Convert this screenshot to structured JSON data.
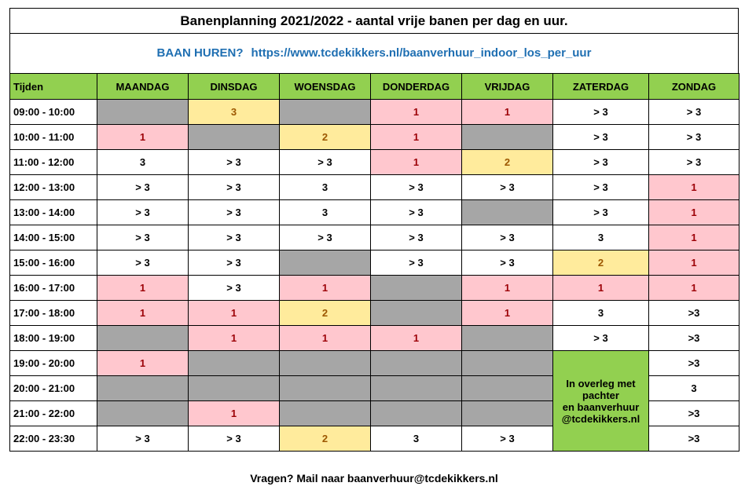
{
  "title": "Banenplanning 2021/2022 - aantal vrije banen per dag en uur.",
  "link": {
    "label": "BAAN HUREN?",
    "url": "https://www.tcdekikkers.nl/baanverhuur_indoor_los_per_uur"
  },
  "headers": [
    "Tijden",
    "MAANDAG",
    "DINSDAG",
    "WOENSDAG",
    "DONDERDAG",
    "VRIJDAG",
    "ZATERDAG",
    "ZONDAG"
  ],
  "status_colors": {
    "grey": "#a6a6a6",
    "pink": "#ffc7ce",
    "yellow": "#ffeb9c",
    "white": "#ffffff",
    "green": "#92d050"
  },
  "rows": [
    {
      "time": "09:00 - 10:00",
      "cells": [
        {
          "v": "",
          "c": "g"
        },
        {
          "v": "3",
          "c": "y"
        },
        {
          "v": "",
          "c": "g"
        },
        {
          "v": "1",
          "c": "p"
        },
        {
          "v": "1",
          "c": "p"
        },
        {
          "v": "> 3",
          "c": "w"
        },
        {
          "v": "> 3",
          "c": "w"
        }
      ]
    },
    {
      "time": "10:00 - 11:00",
      "cells": [
        {
          "v": "1",
          "c": "p"
        },
        {
          "v": "",
          "c": "g"
        },
        {
          "v": "2",
          "c": "y"
        },
        {
          "v": "1",
          "c": "p"
        },
        {
          "v": "",
          "c": "g"
        },
        {
          "v": "> 3",
          "c": "w"
        },
        {
          "v": "> 3",
          "c": "w"
        }
      ]
    },
    {
      "time": "11:00 - 12:00",
      "cells": [
        {
          "v": "3",
          "c": "w"
        },
        {
          "v": "> 3",
          "c": "w"
        },
        {
          "v": "> 3",
          "c": "w"
        },
        {
          "v": "1",
          "c": "p"
        },
        {
          "v": "2",
          "c": "y"
        },
        {
          "v": "> 3",
          "c": "w"
        },
        {
          "v": "> 3",
          "c": "w"
        }
      ]
    },
    {
      "time": "12:00 - 13:00",
      "cells": [
        {
          "v": "> 3",
          "c": "w"
        },
        {
          "v": "> 3",
          "c": "w"
        },
        {
          "v": "3",
          "c": "w"
        },
        {
          "v": "> 3",
          "c": "w"
        },
        {
          "v": "> 3",
          "c": "w"
        },
        {
          "v": "> 3",
          "c": "w"
        },
        {
          "v": "1",
          "c": "p"
        }
      ]
    },
    {
      "time": "13:00 - 14:00",
      "cells": [
        {
          "v": "> 3",
          "c": "w"
        },
        {
          "v": "> 3",
          "c": "w"
        },
        {
          "v": "3",
          "c": "w"
        },
        {
          "v": "> 3",
          "c": "w"
        },
        {
          "v": "",
          "c": "g"
        },
        {
          "v": "> 3",
          "c": "w"
        },
        {
          "v": "1",
          "c": "p"
        }
      ]
    },
    {
      "time": "14:00 - 15:00",
      "cells": [
        {
          "v": "> 3",
          "c": "w"
        },
        {
          "v": "> 3",
          "c": "w"
        },
        {
          "v": "> 3",
          "c": "w"
        },
        {
          "v": "> 3",
          "c": "w"
        },
        {
          "v": "> 3",
          "c": "w"
        },
        {
          "v": "3",
          "c": "w"
        },
        {
          "v": "1",
          "c": "p"
        }
      ]
    },
    {
      "time": "15:00 - 16:00",
      "cells": [
        {
          "v": "> 3",
          "c": "w"
        },
        {
          "v": "> 3",
          "c": "w"
        },
        {
          "v": "",
          "c": "g"
        },
        {
          "v": "> 3",
          "c": "w"
        },
        {
          "v": "> 3",
          "c": "w"
        },
        {
          "v": "2",
          "c": "y"
        },
        {
          "v": "1",
          "c": "p"
        }
      ]
    },
    {
      "time": "16:00 - 17:00",
      "cells": [
        {
          "v": "1",
          "c": "p"
        },
        {
          "v": "> 3",
          "c": "w"
        },
        {
          "v": "1",
          "c": "p"
        },
        {
          "v": "",
          "c": "g"
        },
        {
          "v": "1",
          "c": "p"
        },
        {
          "v": "1",
          "c": "p"
        },
        {
          "v": "1",
          "c": "p"
        }
      ]
    },
    {
      "time": "17:00 - 18:00",
      "cells": [
        {
          "v": "1",
          "c": "p"
        },
        {
          "v": "1",
          "c": "p"
        },
        {
          "v": "2",
          "c": "y"
        },
        {
          "v": "",
          "c": "g"
        },
        {
          "v": "1",
          "c": "p"
        },
        {
          "v": "3",
          "c": "w"
        },
        {
          "v": ">3",
          "c": "w"
        }
      ]
    },
    {
      "time": "18:00 - 19:00",
      "cells": [
        {
          "v": "",
          "c": "g"
        },
        {
          "v": "1",
          "c": "p"
        },
        {
          "v": "1",
          "c": "p"
        },
        {
          "v": "1",
          "c": "p"
        },
        {
          "v": "",
          "c": "g"
        },
        {
          "v": "> 3",
          "c": "w"
        },
        {
          "v": ">3",
          "c": "w"
        }
      ]
    },
    {
      "time": "19:00 - 20:00",
      "cells": [
        {
          "v": "1",
          "c": "p"
        },
        {
          "v": "",
          "c": "g"
        },
        {
          "v": "",
          "c": "g"
        },
        {
          "v": "",
          "c": "g"
        },
        {
          "v": "",
          "c": "g"
        },
        {
          "note": true
        },
        {
          "v": ">3",
          "c": "w"
        }
      ]
    },
    {
      "time": "20:00 - 21:00",
      "cells": [
        {
          "v": "",
          "c": "g"
        },
        {
          "v": "",
          "c": "g"
        },
        {
          "v": "",
          "c": "g"
        },
        {
          "v": "",
          "c": "g"
        },
        {
          "v": "",
          "c": "g"
        },
        {
          "v": "3",
          "c": "w"
        }
      ]
    },
    {
      "time": "21:00 - 22:00",
      "cells": [
        {
          "v": "",
          "c": "g"
        },
        {
          "v": "1",
          "c": "p"
        },
        {
          "v": "",
          "c": "g"
        },
        {
          "v": "",
          "c": "g"
        },
        {
          "v": "",
          "c": "g"
        },
        {
          "v": ">3",
          "c": "w"
        }
      ]
    },
    {
      "time": "22:00 - 23:30",
      "cells": [
        {
          "v": "> 3",
          "c": "w"
        },
        {
          "v": "> 3",
          "c": "w"
        },
        {
          "v": "2",
          "c": "y"
        },
        {
          "v": "3",
          "c": "w"
        },
        {
          "v": "> 3",
          "c": "w"
        },
        {
          "v": ">3",
          "c": "w"
        }
      ]
    }
  ],
  "note": {
    "lines": [
      "In overleg met pachter",
      "en baanverhuur",
      "@tcdekikkers.nl"
    ]
  },
  "footer": "Vragen? Mail naar baanverhuur@tcdekikkers.nl"
}
